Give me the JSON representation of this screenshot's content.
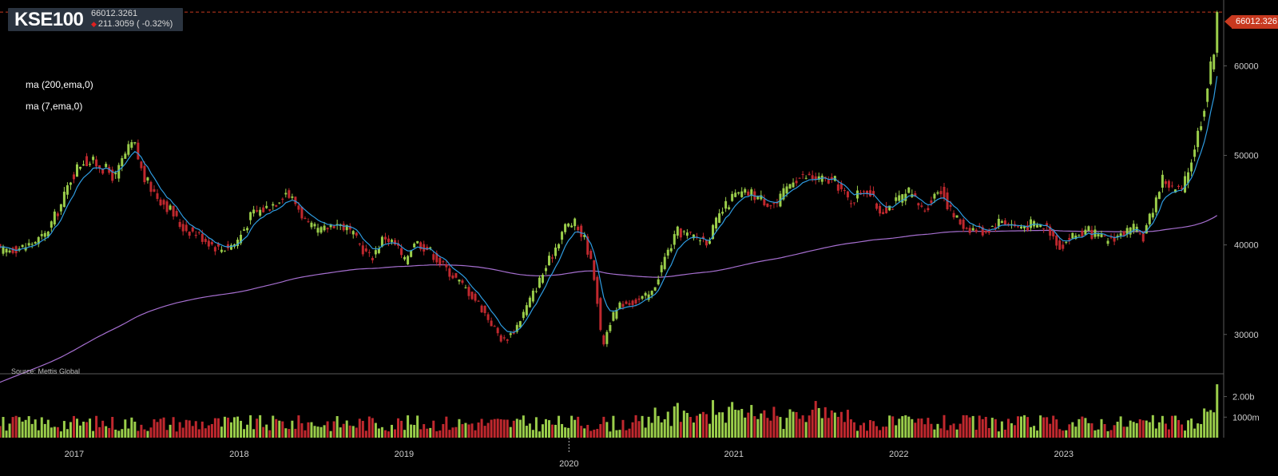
{
  "header": {
    "symbol": "KSE100",
    "last_price": "66012.3261",
    "change": "211.3059 ( -0.32%)",
    "change_icon": "down-triangle-icon",
    "down_color": "#e02020"
  },
  "indicators": [
    {
      "label": "ma (200,ema,0)",
      "color": "#a66fd0"
    },
    {
      "label": "ma (7,ema,0)",
      "color": "#2e9be0"
    }
  ],
  "source": "Source: Mettis Global",
  "price_badge": "66012.326",
  "colors": {
    "up": "#9acd4a",
    "down": "#c0282e",
    "ema7": "#2e9be0",
    "ema200": "#a66fd0",
    "last_line": "#c8391f",
    "separator": "#5a5a5a"
  },
  "chart_data": {
    "type": "candlestick",
    "title": "KSE100",
    "y_ticks": [
      "30000",
      "40000",
      "50000",
      "60000"
    ],
    "ylim": [
      26500,
      67000
    ],
    "x_ticks": [
      "2017",
      "2018",
      "2019",
      "2020",
      "2021",
      "2022",
      "2023"
    ],
    "xlim": [
      2016.55,
      2023.97
    ],
    "volume_ticks": [
      "1000m",
      "2.00b"
    ],
    "volume_ylim": [
      0,
      2.8
    ],
    "last_value": 66012.3261,
    "close_anchors": [
      {
        "x": 2016.55,
        "y": 39300
      },
      {
        "x": 2016.7,
        "y": 39800
      },
      {
        "x": 2016.82,
        "y": 41000
      },
      {
        "x": 2016.92,
        "y": 44500
      },
      {
        "x": 2016.98,
        "y": 47500
      },
      {
        "x": 2017.05,
        "y": 49500
      },
      {
        "x": 2017.15,
        "y": 49000
      },
      {
        "x": 2017.25,
        "y": 47500
      },
      {
        "x": 2017.3,
        "y": 49800
      },
      {
        "x": 2017.36,
        "y": 51500
      },
      {
        "x": 2017.42,
        "y": 47500
      },
      {
        "x": 2017.5,
        "y": 45500
      },
      {
        "x": 2017.58,
        "y": 44000
      },
      {
        "x": 2017.65,
        "y": 42000
      },
      {
        "x": 2017.75,
        "y": 41200
      },
      {
        "x": 2017.88,
        "y": 39500
      },
      {
        "x": 2017.98,
        "y": 40200
      },
      {
        "x": 2018.08,
        "y": 43500
      },
      {
        "x": 2018.15,
        "y": 44000
      },
      {
        "x": 2018.22,
        "y": 44800
      },
      {
        "x": 2018.28,
        "y": 46000
      },
      {
        "x": 2018.35,
        "y": 44500
      },
      {
        "x": 2018.42,
        "y": 42000
      },
      {
        "x": 2018.5,
        "y": 41500
      },
      {
        "x": 2018.58,
        "y": 42500
      },
      {
        "x": 2018.66,
        "y": 41800
      },
      {
        "x": 2018.75,
        "y": 39500
      },
      {
        "x": 2018.8,
        "y": 38500
      },
      {
        "x": 2018.88,
        "y": 41000
      },
      {
        "x": 2018.96,
        "y": 39800
      },
      {
        "x": 2019.0,
        "y": 38000
      },
      {
        "x": 2019.06,
        "y": 40500
      },
      {
        "x": 2019.15,
        "y": 39500
      },
      {
        "x": 2019.22,
        "y": 38000
      },
      {
        "x": 2019.3,
        "y": 36500
      },
      {
        "x": 2019.38,
        "y": 35000
      },
      {
        "x": 2019.45,
        "y": 33500
      },
      {
        "x": 2019.52,
        "y": 31500
      },
      {
        "x": 2019.6,
        "y": 29200
      },
      {
        "x": 2019.67,
        "y": 30500
      },
      {
        "x": 2019.74,
        "y": 33000
      },
      {
        "x": 2019.82,
        "y": 36000
      },
      {
        "x": 2019.9,
        "y": 39000
      },
      {
        "x": 2019.97,
        "y": 42000
      },
      {
        "x": 2020.03,
        "y": 42500
      },
      {
        "x": 2020.1,
        "y": 40500
      },
      {
        "x": 2020.16,
        "y": 36000
      },
      {
        "x": 2020.2,
        "y": 28500
      },
      {
        "x": 2020.25,
        "y": 31500
      },
      {
        "x": 2020.32,
        "y": 33500
      },
      {
        "x": 2020.42,
        "y": 33800
      },
      {
        "x": 2020.5,
        "y": 34500
      },
      {
        "x": 2020.58,
        "y": 38500
      },
      {
        "x": 2020.66,
        "y": 41500
      },
      {
        "x": 2020.74,
        "y": 41000
      },
      {
        "x": 2020.84,
        "y": 40500
      },
      {
        "x": 2020.92,
        "y": 43500
      },
      {
        "x": 2021.0,
        "y": 45500
      },
      {
        "x": 2021.1,
        "y": 45800
      },
      {
        "x": 2021.18,
        "y": 45000
      },
      {
        "x": 2021.26,
        "y": 44500
      },
      {
        "x": 2021.36,
        "y": 47500
      },
      {
        "x": 2021.45,
        "y": 47600
      },
      {
        "x": 2021.55,
        "y": 47200
      },
      {
        "x": 2021.62,
        "y": 47000
      },
      {
        "x": 2021.7,
        "y": 44800
      },
      {
        "x": 2021.8,
        "y": 46500
      },
      {
        "x": 2021.88,
        "y": 43800
      },
      {
        "x": 2021.96,
        "y": 44500
      },
      {
        "x": 2022.06,
        "y": 45800
      },
      {
        "x": 2022.15,
        "y": 43800
      },
      {
        "x": 2022.25,
        "y": 46500
      },
      {
        "x": 2022.32,
        "y": 43500
      },
      {
        "x": 2022.4,
        "y": 42000
      },
      {
        "x": 2022.52,
        "y": 41500
      },
      {
        "x": 2022.62,
        "y": 42800
      },
      {
        "x": 2022.72,
        "y": 42000
      },
      {
        "x": 2022.8,
        "y": 42300
      },
      {
        "x": 2022.9,
        "y": 42000
      },
      {
        "x": 2022.98,
        "y": 39800
      },
      {
        "x": 2023.05,
        "y": 41000
      },
      {
        "x": 2023.15,
        "y": 41500
      },
      {
        "x": 2023.25,
        "y": 40500
      },
      {
        "x": 2023.35,
        "y": 41200
      },
      {
        "x": 2023.42,
        "y": 41800
      },
      {
        "x": 2023.48,
        "y": 40800
      },
      {
        "x": 2023.53,
        "y": 43500
      },
      {
        "x": 2023.6,
        "y": 47500
      },
      {
        "x": 2023.66,
        "y": 46200
      },
      {
        "x": 2023.72,
        "y": 46000
      },
      {
        "x": 2023.78,
        "y": 50000
      },
      {
        "x": 2023.84,
        "y": 54500
      },
      {
        "x": 2023.88,
        "y": 58500
      },
      {
        "x": 2023.91,
        "y": 62000
      },
      {
        "x": 2023.93,
        "y": 66012
      }
    ]
  }
}
